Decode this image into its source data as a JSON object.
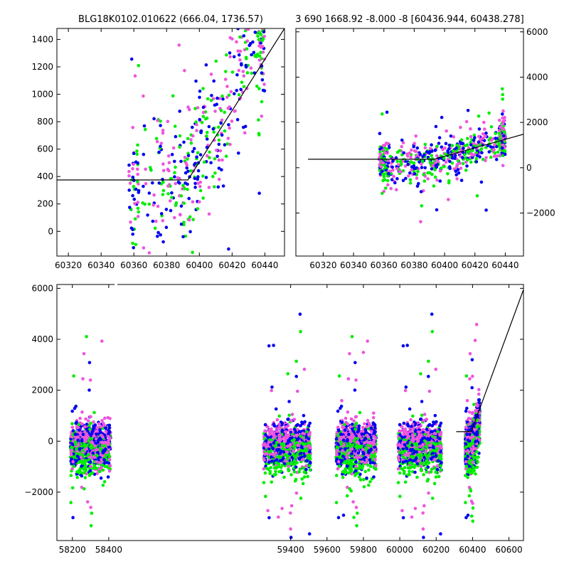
{
  "chart_data": [
    {
      "type": "scatter",
      "title": "BLG18K0102.010622 (666.04, 1736.57)",
      "xlim": [
        60313,
        60452
      ],
      "ylim": [
        -180,
        1480
      ],
      "x_ticks": [
        60320,
        60340,
        60360,
        60380,
        60400,
        60420,
        60440
      ],
      "y_ticks": [
        0,
        200,
        400,
        600,
        800,
        1000,
        1200,
        1400
      ],
      "grid": false,
      "series_colors": [
        "#00ee00",
        "#0000ee",
        "#ee55dd"
      ],
      "model_line": {
        "x": [
          60313,
          60393,
          60452
        ],
        "y": [
          375,
          375,
          1480
        ]
      },
      "scatter_spec": {
        "x_center": 60405,
        "x_spread": 32,
        "x_min": 60357,
        "x_max": 60440,
        "base": 375,
        "t0": 60393,
        "slope": 25,
        "noise": 260,
        "n": 520
      }
    },
    {
      "type": "scatter",
      "title": "3 690 1668.92 -8.000 -8 [60436.944, 60438.278]",
      "xlim": [
        60302,
        60452
      ],
      "ylim": [
        -3900,
        6150
      ],
      "x_ticks": [
        60320,
        60340,
        60360,
        60380,
        60400,
        60420,
        60440
      ],
      "y_ticks": [
        -2000,
        0,
        2000,
        4000,
        6000
      ],
      "y_axis_side": "right",
      "grid": false,
      "series_colors": [
        "#00ee00",
        "#0000ee",
        "#ee55dd"
      ],
      "model_line": {
        "x": [
          60310,
          60393,
          60452
        ],
        "y": [
          375,
          375,
          1480
        ]
      },
      "scatter_spec": {
        "x_center": 60400,
        "x_spread": 40,
        "x_min": 60357,
        "x_max": 60440,
        "base": 300,
        "t0": 60393,
        "slope": 22,
        "noise": 420,
        "n": 650
      }
    },
    {
      "type": "scatter",
      "title": "",
      "xlim": [
        58115,
        60680
      ],
      "ylim": [
        -3900,
        6150
      ],
      "x_ticks": [
        58200,
        58400,
        59400,
        59600,
        59800,
        60000,
        60200,
        60400,
        60600
      ],
      "y_ticks": [
        -2000,
        0,
        2000,
        4000,
        6000
      ],
      "grid": false,
      "series_colors": [
        "#00ee00",
        "#0000ee",
        "#ee55dd"
      ],
      "seasons": [
        [
          58190,
          58410
        ],
        [
          59250,
          59510
        ],
        [
          59650,
          59870
        ],
        [
          59990,
          60230
        ],
        [
          60360,
          60440
        ]
      ],
      "gap_marker_x": 58440,
      "model_line": {
        "x": [
          60310,
          60393,
          60680
        ],
        "y": [
          375,
          375,
          5950
        ]
      },
      "scatter_spec": {
        "base": 0,
        "noise": 420,
        "n_per_season": 900
      }
    }
  ]
}
